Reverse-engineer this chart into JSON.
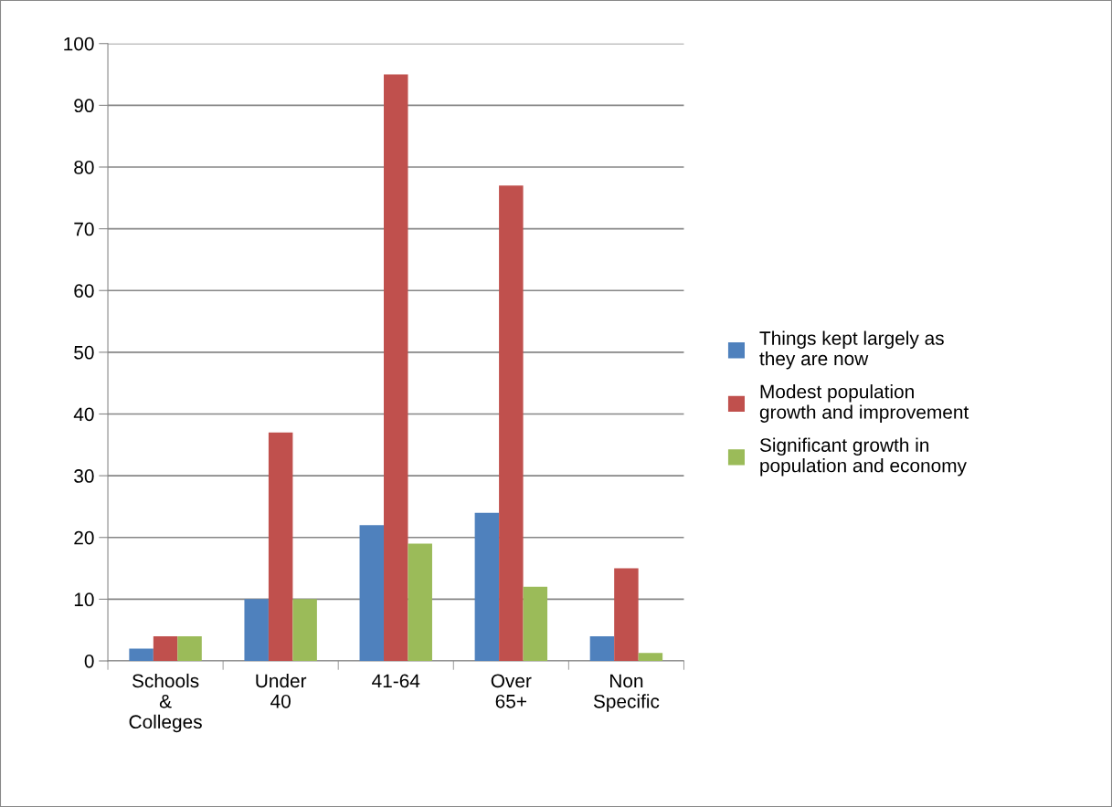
{
  "chart_data": {
    "type": "bar",
    "categories": [
      "Schools\n&\nColleges",
      "Under\n40",
      "41-64",
      "Over\n65+",
      "Non\nSpecific"
    ],
    "series": [
      {
        "name": "Things kept largely as\nthey are now",
        "color": "#4f81bd",
        "values": [
          2,
          10,
          22,
          24,
          4
        ]
      },
      {
        "name": "Modest population\ngrowth and improvement",
        "color": "#c0504d",
        "values": [
          4,
          37,
          95,
          77,
          15
        ]
      },
      {
        "name": "Significant growth in\npopulation and economy",
        "color": "#9bbb59",
        "values": [
          4,
          10,
          19,
          12,
          1.3
        ]
      }
    ],
    "ylim": [
      0,
      100
    ],
    "yticks": [
      0,
      10,
      20,
      30,
      40,
      50,
      60,
      70,
      80,
      90,
      100
    ],
    "grid": "y",
    "legend": "right"
  }
}
